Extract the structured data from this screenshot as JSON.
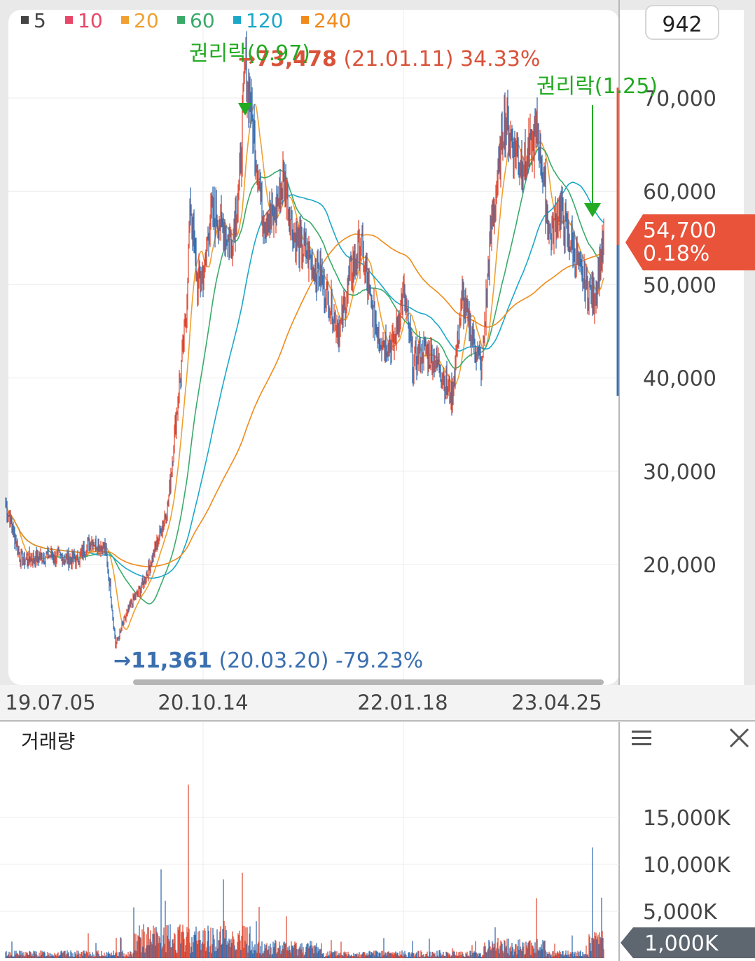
{
  "legend": [
    {
      "label": "5",
      "color": "#444444"
    },
    {
      "label": "10",
      "color": "#e8476a"
    },
    {
      "label": "20",
      "color": "#f0a030"
    },
    {
      "label": "60",
      "color": "#3aaa6a"
    },
    {
      "label": "120",
      "color": "#1ba8c8"
    },
    {
      "label": "240",
      "color": "#f08a1a"
    }
  ],
  "period_badge": "942",
  "price_axis": {
    "ticks": [
      "70,000",
      "60,000",
      "50,000",
      "40,000",
      "30,000",
      "20,000"
    ]
  },
  "current_price": {
    "price": "54,700",
    "change": "0.18%",
    "color": "#e8533a"
  },
  "high_marker": {
    "text": "→73,478",
    "rest": " (21.01.11) 34.33%",
    "color": "#d9533a"
  },
  "low_marker": {
    "text": "→11,361",
    "rest": " (20.03.20) -79.23%",
    "color": "#3a6fb0"
  },
  "events": [
    {
      "label": "권리락(0.97)",
      "color": "#22aa22"
    },
    {
      "label": "권리락(1.25)",
      "color": "#22aa22"
    }
  ],
  "date_axis": {
    "ticks": [
      "19.07.05",
      "20.10.14",
      "22.01.18",
      "23.04.25"
    ]
  },
  "volume_panel": {
    "title": "거래량",
    "ticks": [
      "15,000K",
      "10,000K",
      "5,000K"
    ],
    "current": "1,000K"
  },
  "chart_data": [
    {
      "type": "line",
      "title": "",
      "x": [
        "19.07.05",
        "20.03.20",
        "20.10.14",
        "21.01.11",
        "22.01.18",
        "23.04.25",
        "current"
      ],
      "ylim": [
        10000,
        76000
      ],
      "series": [
        {
          "name": "",
          "values": [
            27000,
            11361,
            42000,
            73478,
            44000,
            67000,
            54700
          ]
        }
      ],
      "annotations": [
        {
          "text": "→73,478 (21.01.11) 34.33%"
        },
        {
          "text": "→11,361 (20.03.20) -79.23%"
        },
        {
          "text": "권리락(0.97)"
        },
        {
          "text": "권리락(1.25)"
        }
      ],
      "moving_averages": [
        "5",
        "10",
        "20",
        "60",
        "120",
        "240"
      ],
      "grid": true,
      "last": {
        "value": 54700,
        "change_pct": 0.18
      }
    },
    {
      "type": "bar",
      "title": "거래량",
      "unit": "K",
      "ylim": [
        0,
        19000
      ],
      "peaks": [
        {
          "x": "20.10.14",
          "value": 18500
        },
        {
          "x": "current",
          "value": 11800
        }
      ],
      "last": 1000
    }
  ]
}
